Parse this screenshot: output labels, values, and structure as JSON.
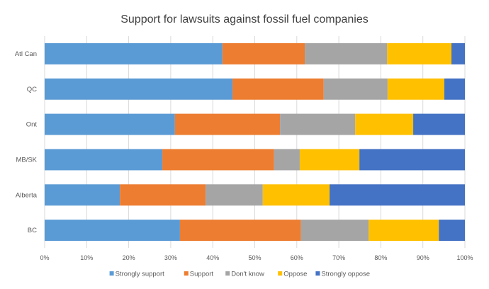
{
  "chart_data": {
    "type": "bar",
    "orientation": "horizontal",
    "stacked": "100%",
    "title": "Support for lawsuits against fossil fuel companies",
    "xlabel": "",
    "ylabel": "",
    "xlim": [
      0,
      100
    ],
    "x_ticks": [
      "0%",
      "10%",
      "20%",
      "30%",
      "40%",
      "50%",
      "60%",
      "70%",
      "80%",
      "90%",
      "100%"
    ],
    "categories": [
      "Atl Can",
      "QC",
      "Ont",
      "MB/SK",
      "Alberta",
      "BC"
    ],
    "series": [
      {
        "name": "Strongly support",
        "color": "#5B9BD5",
        "values": [
          42.3,
          44.7,
          31.0,
          28.0,
          17.9,
          32.2
        ]
      },
      {
        "name": "Support",
        "color": "#ED7D31",
        "values": [
          19.6,
          21.7,
          25.0,
          26.6,
          20.4,
          28.8
        ]
      },
      {
        "name": "Don't know",
        "color": "#A5A5A5",
        "values": [
          19.6,
          15.2,
          17.9,
          6.1,
          13.6,
          16.1
        ]
      },
      {
        "name": "Oppose",
        "color": "#FFC000",
        "values": [
          15.3,
          13.5,
          13.8,
          14.2,
          15.9,
          16.7
        ]
      },
      {
        "name": "Strongly oppose",
        "color": "#4472C4",
        "values": [
          3.2,
          4.9,
          12.3,
          25.1,
          32.2,
          6.2
        ]
      }
    ],
    "grid": true,
    "legend_position": "bottom"
  }
}
